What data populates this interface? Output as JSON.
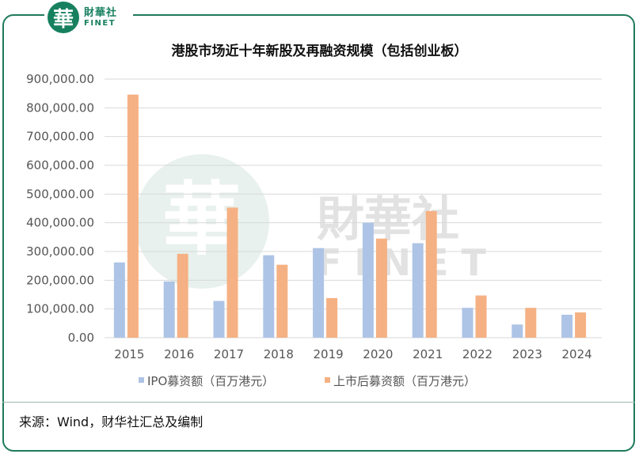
{
  "logo": {
    "mark": "華",
    "name_cn": "財華社",
    "name_en": "FINET"
  },
  "watermark": {
    "mark": "華",
    "name_cn": "財華社",
    "name_en": "FINET"
  },
  "source": "来源：Wind，财华社汇总及编制",
  "colors": {
    "ipo": "#aec4e6",
    "refinance": "#f5b183",
    "frame": "#1f7a5c",
    "grid": "#d9d9d9"
  },
  "chart_data": {
    "type": "bar",
    "title": "港股市场近十年新股及再融资规模（包括创业板）",
    "categories": [
      "2015",
      "2016",
      "2017",
      "2018",
      "2019",
      "2020",
      "2021",
      "2022",
      "2023",
      "2024"
    ],
    "series": [
      {
        "name": "IPO募资额（百万港元）",
        "values": [
          262000,
          196000,
          128000,
          287000,
          312000,
          400000,
          329000,
          104000,
          46000,
          80000
        ]
      },
      {
        "name": "上市后募资额（百万港元）",
        "values": [
          846000,
          292000,
          453000,
          254000,
          138000,
          345000,
          441000,
          147000,
          104000,
          88000
        ]
      }
    ],
    "y_ticks": [
      "0.00",
      "100,000.00",
      "200,000.00",
      "300,000.00",
      "400,000.00",
      "500,000.00",
      "600,000.00",
      "700,000.00",
      "800,000.00",
      "900,000.00"
    ],
    "ylim": [
      0,
      900000
    ],
    "grid": true,
    "legend_position": "bottom"
  }
}
